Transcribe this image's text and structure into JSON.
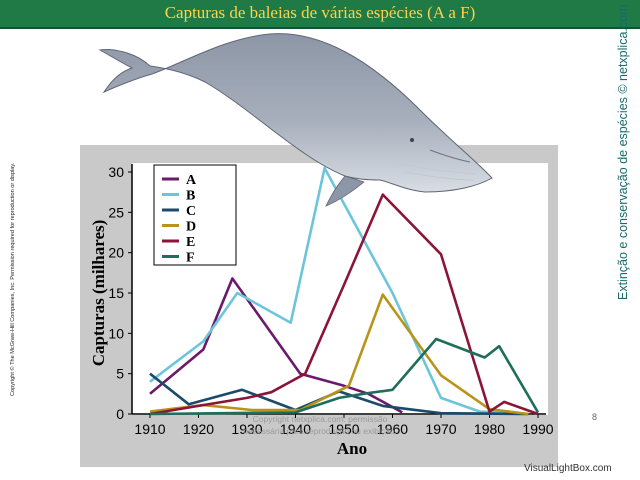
{
  "slide": {
    "title": "Capturas de baleias de várias espécies (A a F)",
    "side_text_right": "Extinção e conservação de espécies © netxplica.com",
    "side_text_left": "Copyright © The McGraw-Hill Companies, Inc. Permission required for reproduction or display.",
    "page_number": "8",
    "watermark_line1": "Copyright netxplica.com: permissão",
    "watermark_line2": "necessária para reprodução ou exibição.",
    "brand": "VisualLightBox.com"
  },
  "chart_data": {
    "type": "line",
    "title": "",
    "xlabel": "Ano",
    "ylabel": "Capturas (milhares)",
    "xlim": [
      1910,
      1990
    ],
    "ylim": [
      0,
      30
    ],
    "xticks": [
      "1910",
      "1920",
      "1930",
      "1940",
      "1950",
      "1960",
      "1970",
      "1980",
      "1990"
    ],
    "yticks": [
      "0",
      "5",
      "10",
      "15",
      "20",
      "25",
      "30"
    ],
    "grid": false,
    "legend": "top-left",
    "series": [
      {
        "name": "A",
        "color": "#6b1a6b",
        "points": [
          [
            1910,
            2.5
          ],
          [
            1921,
            8
          ],
          [
            1927,
            16.8
          ],
          [
            1941,
            5
          ],
          [
            1950,
            3.5
          ],
          [
            1955,
            2.5
          ],
          [
            1962,
            0.2
          ]
        ]
      },
      {
        "name": "B",
        "color": "#6cc5db",
        "points": [
          [
            1910,
            4
          ],
          [
            1921,
            9
          ],
          [
            1928,
            15
          ],
          [
            1939,
            11.3
          ],
          [
            1946,
            30.5
          ],
          [
            1960,
            15
          ],
          [
            1970,
            2
          ],
          [
            1978,
            0.3
          ],
          [
            1988,
            0
          ]
        ]
      },
      {
        "name": "C",
        "color": "#1b4a6b",
        "points": [
          [
            1910,
            5
          ],
          [
            1918,
            1.2
          ],
          [
            1929,
            3
          ],
          [
            1940,
            0.5
          ],
          [
            1949,
            2.8
          ],
          [
            1958,
            1
          ],
          [
            1970,
            0.1
          ],
          [
            1988,
            0
          ]
        ]
      },
      {
        "name": "D",
        "color": "#b8941a",
        "points": [
          [
            1910,
            0.3
          ],
          [
            1921,
            1.1
          ],
          [
            1931,
            0.5
          ],
          [
            1941,
            0.5
          ],
          [
            1951,
            3.5
          ],
          [
            1958,
            14.8
          ],
          [
            1970,
            4.8
          ],
          [
            1980,
            0.6
          ],
          [
            1988,
            0
          ]
        ]
      },
      {
        "name": "E",
        "color": "#8a1538",
        "points": [
          [
            1910,
            0
          ],
          [
            1920,
            1
          ],
          [
            1930,
            2
          ],
          [
            1935,
            2.7
          ],
          [
            1942,
            5
          ],
          [
            1950,
            16
          ],
          [
            1958,
            27.2
          ],
          [
            1970,
            19.8
          ],
          [
            1980,
            0.3
          ],
          [
            1983,
            1.5
          ],
          [
            1990,
            0
          ]
        ]
      },
      {
        "name": "F",
        "color": "#1d6e5a",
        "points": [
          [
            1910,
            0
          ],
          [
            1940,
            0.2
          ],
          [
            1949,
            2
          ],
          [
            1954,
            2.5
          ],
          [
            1960,
            3
          ],
          [
            1969,
            9.3
          ],
          [
            1979,
            7
          ],
          [
            1982,
            8.4
          ],
          [
            1990,
            0.2
          ]
        ]
      }
    ]
  }
}
